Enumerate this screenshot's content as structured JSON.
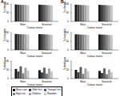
{
  "chart_data": [
    {
      "type": "bar",
      "annotations": [
        "A"
      ],
      "x_label": "Contact matrix",
      "y_label": "% infected",
      "categories": [
        "Mass",
        "Seasonal"
      ],
      "ylim": [
        0,
        100
      ],
      "yticks": [
        0,
        50,
        100
      ],
      "grid": false,
      "legend": "bottom",
      "series": [
        {
          "name": "Base case",
          "color": "#1a1a1a",
          "values": [
            97,
            96
          ]
        },
        {
          "name": "Older first",
          "color": "#3d3d3d",
          "values": [
            96,
            95
          ]
        },
        {
          "name": "Younger first",
          "color": "#5e5e5e",
          "values": [
            95,
            95
          ]
        },
        {
          "name": "High risk",
          "color": "#808080",
          "values": [
            95,
            94
          ]
        },
        {
          "name": "Children",
          "color": "#a3a3a3",
          "values": [
            94,
            93
          ]
        },
        {
          "name": "Random",
          "color": "#c6c6c6",
          "values": [
            93,
            92
          ]
        }
      ]
    },
    {
      "type": "bar",
      "x_label": "Contact matrix",
      "y_label": "% hospitalized",
      "categories": [
        "Mass",
        "Seasonal"
      ],
      "ylim": [
        0,
        100
      ],
      "yticks": [
        0,
        50,
        100
      ],
      "grid": false,
      "series": [
        {
          "name": "Base case",
          "color": "#1a1a1a",
          "values": [
            92,
            91
          ]
        },
        {
          "name": "Older first",
          "color": "#3d3d3d",
          "values": [
            91,
            90
          ]
        },
        {
          "name": "Younger first",
          "color": "#5e5e5e",
          "values": [
            90,
            90
          ]
        },
        {
          "name": "High risk",
          "color": "#808080",
          "values": [
            90,
            89
          ]
        },
        {
          "name": "Children",
          "color": "#a3a3a3",
          "values": [
            89,
            88
          ]
        },
        {
          "name": "Random",
          "color": "#c6c6c6",
          "values": [
            88,
            87
          ]
        }
      ]
    },
    {
      "type": "bar",
      "x_label": "Contact matrix",
      "y_label": "% deaths averted",
      "categories": [
        "Mass",
        "Seasonal"
      ],
      "ylim": [
        0,
        100
      ],
      "yticks": [
        0,
        50,
        100
      ],
      "grid": false,
      "series": [
        {
          "name": "Base case",
          "color": "#1a1a1a",
          "values": [
            55,
            48
          ]
        },
        {
          "name": "Older first",
          "color": "#3d3d3d",
          "values": [
            40,
            35
          ]
        },
        {
          "name": "Younger first",
          "color": "#5e5e5e",
          "values": [
            70,
            62
          ]
        },
        {
          "name": "High risk",
          "color": "#808080",
          "values": [
            30,
            28
          ]
        },
        {
          "name": "Children",
          "color": "#a3a3a3",
          "values": [
            62,
            57
          ]
        },
        {
          "name": "Random",
          "color": "#c6c6c6",
          "values": [
            45,
            40
          ]
        }
      ]
    },
    {
      "type": "bar",
      "annotations": [
        "B"
      ],
      "x_label": "Contact matrix",
      "y_label": "% infected",
      "categories": [
        "Mass",
        "Seasonal"
      ],
      "ylim": [
        0,
        100
      ],
      "yticks": [
        0,
        50,
        100
      ],
      "grid": false,
      "series": [
        {
          "name": "Base case",
          "color": "#1a1a1a",
          "values": [
            96,
            95
          ]
        },
        {
          "name": "Older first",
          "color": "#3d3d3d",
          "values": [
            95,
            94
          ]
        },
        {
          "name": "Younger first",
          "color": "#5e5e5e",
          "values": [
            94,
            94
          ]
        },
        {
          "name": "High risk",
          "color": "#808080",
          "values": [
            94,
            93
          ]
        },
        {
          "name": "Children",
          "color": "#a3a3a3",
          "values": [
            93,
            92
          ]
        },
        {
          "name": "Random",
          "color": "#c6c6c6",
          "values": [
            92,
            91
          ]
        }
      ]
    },
    {
      "type": "bar",
      "x_label": "Contact matrix",
      "y_label": "% hospitalized",
      "categories": [
        "Mass",
        "Seasonal"
      ],
      "ylim": [
        0,
        100
      ],
      "yticks": [
        0,
        50,
        100
      ],
      "grid": false,
      "series": [
        {
          "name": "Base case",
          "color": "#1a1a1a",
          "values": [
            90,
            89
          ]
        },
        {
          "name": "Older first",
          "color": "#3d3d3d",
          "values": [
            89,
            88
          ]
        },
        {
          "name": "Younger first",
          "color": "#5e5e5e",
          "values": [
            88,
            88
          ]
        },
        {
          "name": "High risk",
          "color": "#808080",
          "values": [
            88,
            87
          ]
        },
        {
          "name": "Children",
          "color": "#a3a3a3",
          "values": [
            87,
            86
          ]
        },
        {
          "name": "Random",
          "color": "#c6c6c6",
          "values": [
            86,
            85
          ]
        }
      ]
    },
    {
      "type": "bar",
      "x_label": "Contact matrix",
      "y_label": "% deaths averted",
      "categories": [
        "Mass",
        "Seasonal"
      ],
      "ylim": [
        0,
        100
      ],
      "yticks": [
        0,
        50,
        100
      ],
      "grid": false,
      "series": [
        {
          "name": "Base case",
          "color": "#1a1a1a",
          "values": [
            50,
            44
          ]
        },
        {
          "name": "Older first",
          "color": "#3d3d3d",
          "values": [
            36,
            32
          ]
        },
        {
          "name": "Younger first",
          "color": "#5e5e5e",
          "values": [
            66,
            58
          ]
        },
        {
          "name": "High risk",
          "color": "#808080",
          "values": [
            27,
            25
          ]
        },
        {
          "name": "Children",
          "color": "#a3a3a3",
          "values": [
            58,
            52
          ]
        },
        {
          "name": "Random",
          "color": "#c6c6c6",
          "values": [
            42,
            37
          ]
        }
      ]
    }
  ]
}
